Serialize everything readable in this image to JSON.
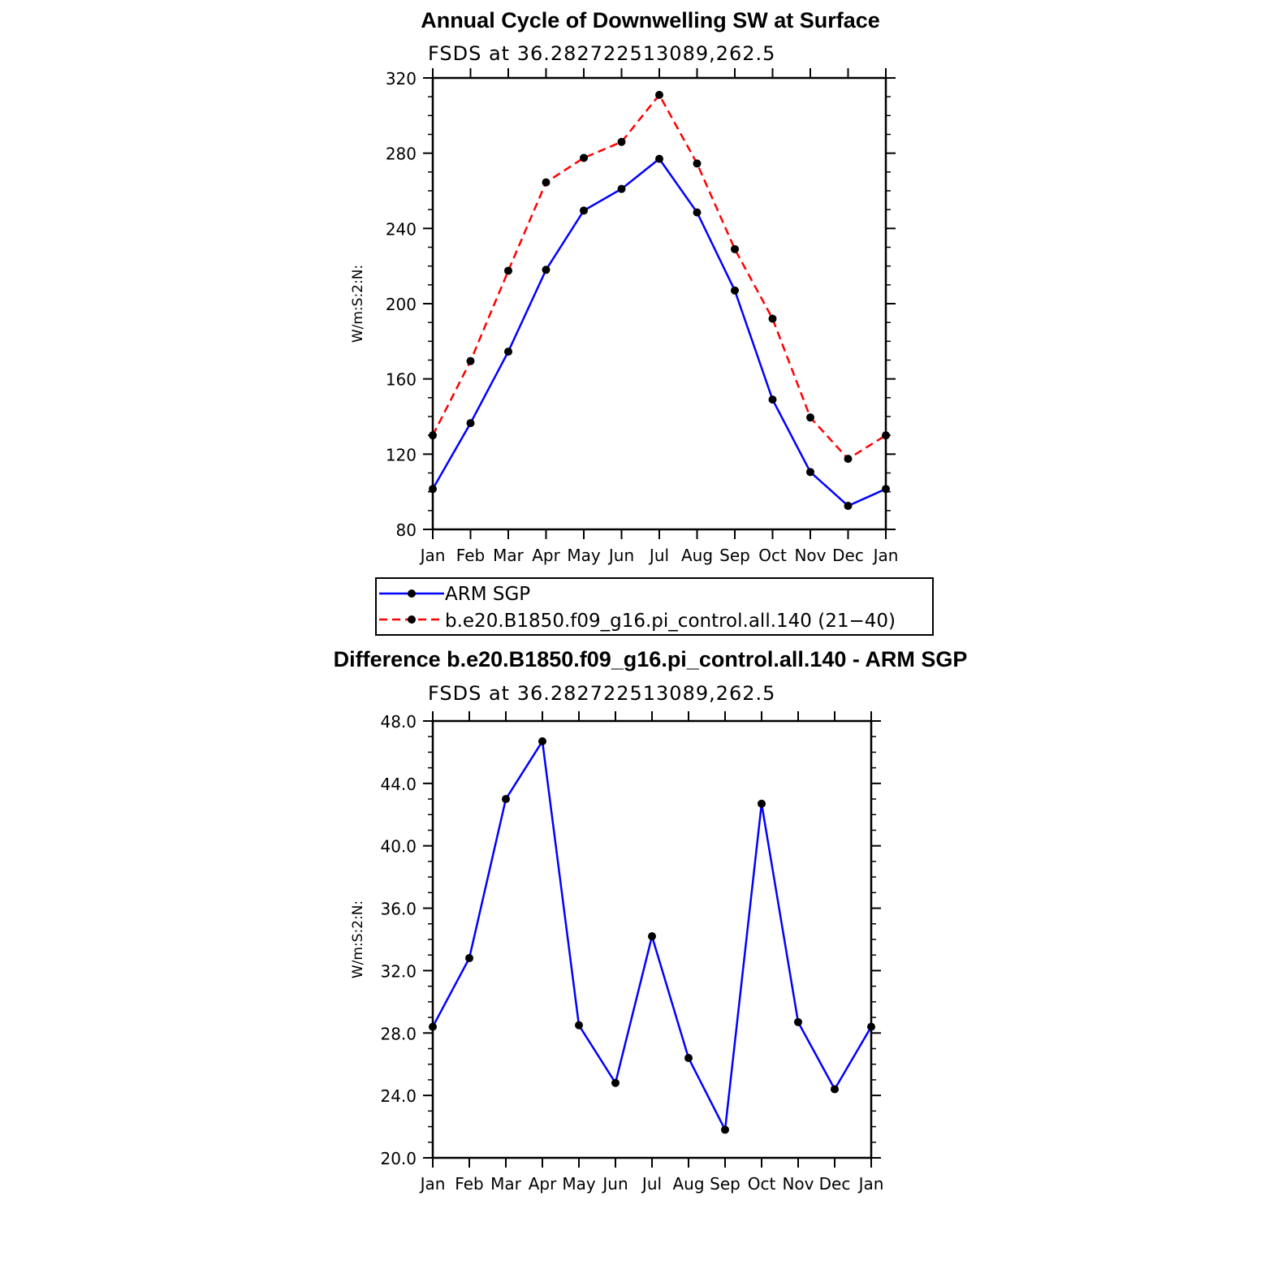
{
  "chart_data": [
    {
      "type": "line",
      "title": "Annual Cycle of Downwelling SW at Surface",
      "subtitle": "FSDS at 36.282722513089,262.5",
      "ylabel": "W/m:S:2:N:",
      "xlabel": "",
      "categories": [
        "Jan",
        "Feb",
        "Mar",
        "Apr",
        "May",
        "Jun",
        "Jul",
        "Aug",
        "Sep",
        "Oct",
        "Nov",
        "Dec",
        "Jan"
      ],
      "ylim": [
        80,
        320
      ],
      "yticks": [
        "80",
        "120",
        "160",
        "200",
        "240",
        "280",
        "320"
      ],
      "grid": false,
      "legend_position": "bottom",
      "series": [
        {
          "name": "ARM SGP",
          "color": "#0000ff",
          "dash": "solid",
          "values": [
            101.5,
            136.5,
            174.5,
            218,
            249.5,
            261,
            277,
            248.5,
            207,
            149,
            110.5,
            92.5,
            101.5
          ]
        },
        {
          "name": "b.e20.B1850.f09_g16.pi_control.all.140 (21−40)",
          "color": "#ff0000",
          "dash": "dashed",
          "values": [
            130,
            169.5,
            217.5,
            264.5,
            277.5,
            286,
            311,
            274.5,
            229,
            192,
            139.5,
            117.5,
            130
          ]
        }
      ]
    },
    {
      "type": "line",
      "title": "Difference b.e20.B1850.f09_g16.pi_control.all.140 - ARM SGP",
      "subtitle": "FSDS at 36.282722513089,262.5",
      "ylabel": "W/m:S:2:N:",
      "xlabel": "",
      "categories": [
        "Jan",
        "Feb",
        "Mar",
        "Apr",
        "May",
        "Jun",
        "Jul",
        "Aug",
        "Sep",
        "Oct",
        "Nov",
        "Dec",
        "Jan"
      ],
      "ylim": [
        20,
        48
      ],
      "yticks": [
        "20.0",
        "24.0",
        "28.0",
        "32.0",
        "36.0",
        "40.0",
        "44.0",
        "48.0"
      ],
      "grid": false,
      "series": [
        {
          "color": "#0000ff",
          "dash": "solid",
          "values": [
            28.4,
            32.8,
            43.0,
            46.7,
            28.5,
            24.8,
            34.2,
            26.4,
            21.8,
            42.7,
            28.7,
            24.4,
            28.4
          ]
        }
      ]
    }
  ]
}
